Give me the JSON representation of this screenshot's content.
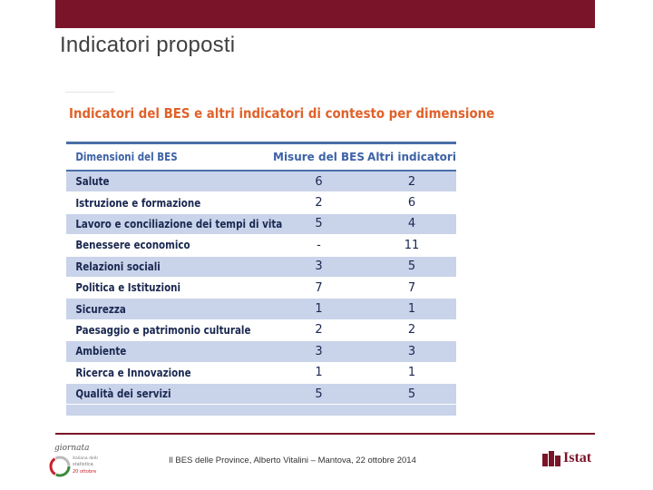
{
  "slide": {
    "title": "Indicatori proposti"
  },
  "table": {
    "title": "Indicatori del BES e altri indicatori di contesto per dimensione",
    "headers": [
      "Dimensioni del BES",
      "Misure del BES",
      "Altri indicatori"
    ],
    "rows": [
      {
        "dimension": "Salute",
        "bes": "6",
        "altri": "2"
      },
      {
        "dimension": "Istruzione e formazione",
        "bes": "2",
        "altri": "6"
      },
      {
        "dimension": "Lavoro e conciliazione dei tempi di vita",
        "bes": "5",
        "altri": "4"
      },
      {
        "dimension": "Benessere economico",
        "bes": "-",
        "altri": "11"
      },
      {
        "dimension": "Relazioni sociali",
        "bes": "3",
        "altri": "5"
      },
      {
        "dimension": "Politica e Istituzioni",
        "bes": "7",
        "altri": "7"
      },
      {
        "dimension": "Sicurezza",
        "bes": "1",
        "altri": "1"
      },
      {
        "dimension": "Paesaggio e patrimonio culturale",
        "bes": "2",
        "altri": "2"
      },
      {
        "dimension": "Ambiente",
        "bes": "3",
        "altri": "3"
      },
      {
        "dimension": "Ricerca e Innovazione",
        "bes": "1",
        "altri": "1"
      },
      {
        "dimension": "Qualità dei servizi",
        "bes": "5",
        "altri": "5"
      }
    ]
  },
  "footer": {
    "text": "Il BES delle Province, Alberto Vitalini – Mantova, 22 ottobre 2014",
    "left_logo_text": [
      "giornata",
      "italiana della",
      "statistica"
    ],
    "right_logo_text": "Istat"
  },
  "colors": {
    "brand": "#7a1428",
    "table_title": "#e0612a",
    "header_text": "#3d62a6",
    "row_shade": "#c9d3ea",
    "body_text": "#1a2850"
  }
}
